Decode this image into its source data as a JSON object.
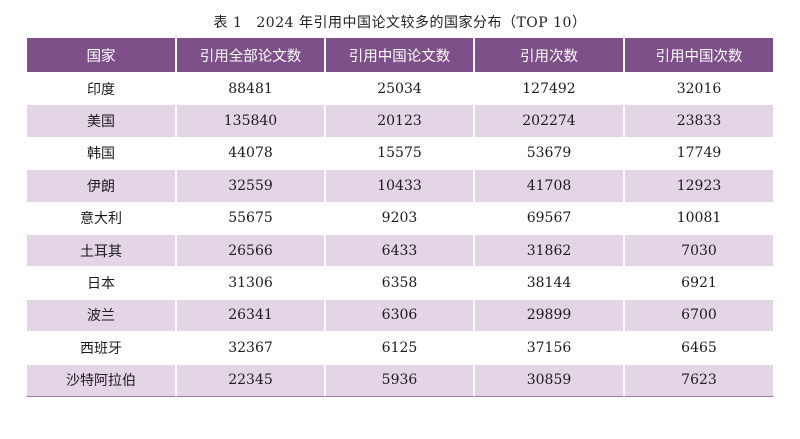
{
  "caption": {
    "label": "表 1",
    "title": "2024 年引用中国论文较多的国家分布（TOP 10）"
  },
  "table": {
    "headers": [
      "国家",
      "引用全部论文数",
      "引用中国论文数",
      "引用次数",
      "引用中国次数"
    ],
    "rows": [
      [
        "印度",
        "88481",
        "25034",
        "127492",
        "32016"
      ],
      [
        "美国",
        "135840",
        "20123",
        "202274",
        "23833"
      ],
      [
        "韩国",
        "44078",
        "15575",
        "53679",
        "17749"
      ],
      [
        "伊朗",
        "32559",
        "10433",
        "41708",
        "12923"
      ],
      [
        "意大利",
        "55675",
        "9203",
        "69567",
        "10081"
      ],
      [
        "土耳其",
        "26566",
        "6433",
        "31862",
        "7030"
      ],
      [
        "日本",
        "31306",
        "6358",
        "38144",
        "6921"
      ],
      [
        "波兰",
        "26341",
        "6306",
        "29899",
        "6700"
      ],
      [
        "西班牙",
        "32367",
        "6125",
        "37156",
        "6465"
      ],
      [
        "沙特阿拉伯",
        "22345",
        "5936",
        "30859",
        "7623"
      ]
    ]
  },
  "colors": {
    "header_bg": "#7e5089",
    "header_text": "#ffffff",
    "stripe_bg": "#e3d4e6",
    "row_bg": "#ffffff"
  }
}
